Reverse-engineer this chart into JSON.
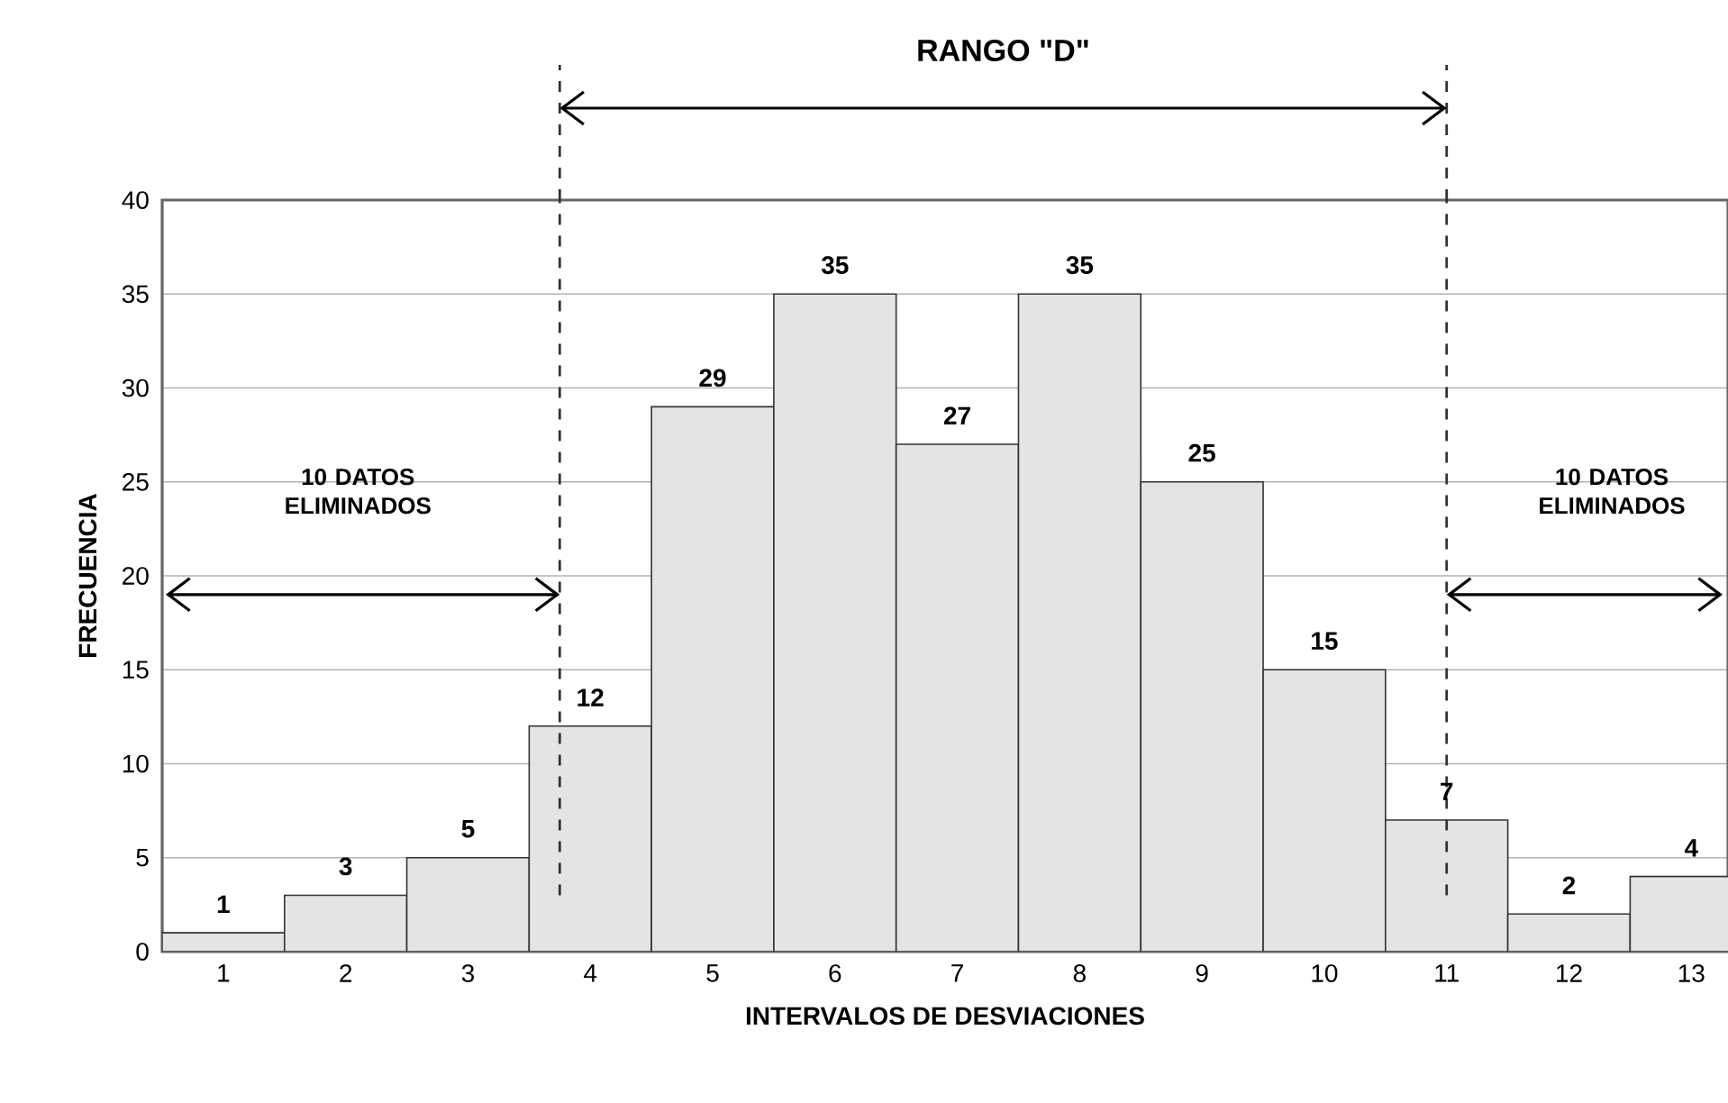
{
  "chart_data": {
    "type": "bar",
    "xlabel": "INTERVALOS DE DESVIACIONES",
    "ylabel": "FRECUENCIA",
    "x": [
      1,
      2,
      3,
      4,
      5,
      6,
      7,
      8,
      9,
      10,
      11,
      12,
      13
    ],
    "values": [
      1,
      3,
      5,
      12,
      29,
      35,
      27,
      35,
      25,
      15,
      7,
      2,
      4
    ],
    "color": "#e4e4e4",
    "data_labels": true,
    "grid": "y",
    "xlim": [
      0.5,
      13.3
    ],
    "xticks": [
      1,
      2,
      3,
      4,
      5,
      6,
      7,
      8,
      9,
      10,
      11,
      12,
      13
    ],
    "ylim": [
      0,
      40
    ],
    "yticks": [
      0,
      5,
      10,
      15,
      20,
      25,
      30,
      35,
      40
    ],
    "ref_lines": [
      {
        "axis": "x",
        "value": 3.75,
        "line_style": "dashed"
      },
      {
        "axis": "x",
        "value": 11,
        "line_style": "dashed"
      }
    ],
    "annotations": [
      "RANGO \"D\"",
      "10 DATOS ELIMINADOS",
      "10 DATOS ELIMINADOS"
    ]
  }
}
